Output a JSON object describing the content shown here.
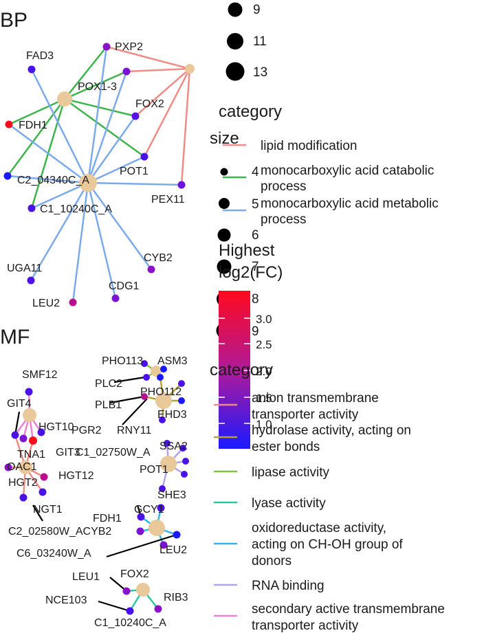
{
  "panels": [
    {
      "id": "BP",
      "title": "BP"
    },
    {
      "id": "MF",
      "title": "MF"
    }
  ],
  "bp": {
    "edge_colors": {
      "lipid": "#f08c86",
      "catabolic": "#3cb54a",
      "metabolic": "#7aaaea"
    },
    "nodes": [
      {
        "label": "PXP2"
      },
      {
        "label": "FAD3"
      },
      {
        "label": "POX1-3"
      },
      {
        "label": "FOX2"
      },
      {
        "label": "FDH1"
      },
      {
        "label": "POT1"
      },
      {
        "label": "C2_04340C_A"
      },
      {
        "label": "PEX11"
      },
      {
        "label": "C1_10240C_A"
      },
      {
        "label": "CYB2"
      },
      {
        "label": "UGA11"
      },
      {
        "label": "CDG1"
      },
      {
        "label": "LEU2"
      }
    ]
  },
  "mf": {
    "nodes": [
      {
        "label": "SMF12"
      },
      {
        "label": "GIT4"
      },
      {
        "label": "HGT10"
      },
      {
        "label": "TNA1"
      },
      {
        "label": "OAC1"
      },
      {
        "label": "HGT2"
      },
      {
        "label": "HGT12"
      },
      {
        "label": "NGT1"
      },
      {
        "label": "C2_02580W_ACYB2"
      },
      {
        "label": "PHO113"
      },
      {
        "label": "ASM3"
      },
      {
        "label": "PLC2"
      },
      {
        "label": "PHO112"
      },
      {
        "label": "PLB1"
      },
      {
        "label": "EHD3"
      },
      {
        "label": "PGR2"
      },
      {
        "label": "RNY11"
      },
      {
        "label": "GIT3"
      },
      {
        "label": "C1_02750W_A"
      },
      {
        "label": "SSA2"
      },
      {
        "label": "POT1"
      },
      {
        "label": "SHE3"
      },
      {
        "label": "FDH1"
      },
      {
        "label": "GCY1"
      },
      {
        "label": "C6_03240W_A"
      },
      {
        "label": "LEU2"
      },
      {
        "label": "LEU1"
      },
      {
        "label": "FOX2"
      },
      {
        "label": "RIB3"
      },
      {
        "label": "NCE103"
      },
      {
        "label": "C1_10240C_A"
      }
    ]
  },
  "legend": {
    "size_top_values": [
      "9",
      "11",
      "13"
    ],
    "category1_title": "category",
    "category1": [
      {
        "label": "lipid modification",
        "color": "#f08c86"
      },
      {
        "label": "monocarboxylic acid catabolic process",
        "color": "#3cb54a"
      },
      {
        "label": "monocarboxylic acid metabolic process",
        "color": "#7aaaea"
      }
    ],
    "size2_title": "size",
    "size2_values": [
      "4",
      "5",
      "6",
      "7",
      "8",
      "9"
    ],
    "color_title": "Highest log2(FC)",
    "color_ticks": [
      "3.0",
      "2.5",
      "2.0",
      "1.5",
      "1.0"
    ],
    "color_scale": {
      "low": "#1a1aff",
      "high": "#ff0a1e"
    },
    "category2_title": "category",
    "category2": [
      {
        "label": "anion transmembrane transporter activity",
        "color": "#f08c86"
      },
      {
        "label": "hydrolase activity, acting on ester bonds",
        "color": "#b8a235"
      },
      {
        "label": "lipase activity",
        "color": "#7cc23a"
      },
      {
        "label": "lyase activity",
        "color": "#2ec4a6"
      },
      {
        "label": "oxidoreductase activity, acting on CH-OH group of donors",
        "color": "#2fb5e8"
      },
      {
        "label": "RNA binding",
        "color": "#b3a2ee"
      },
      {
        "label": "secondary active transmembrane transporter activity",
        "color": "#ee80d6"
      }
    ]
  }
}
